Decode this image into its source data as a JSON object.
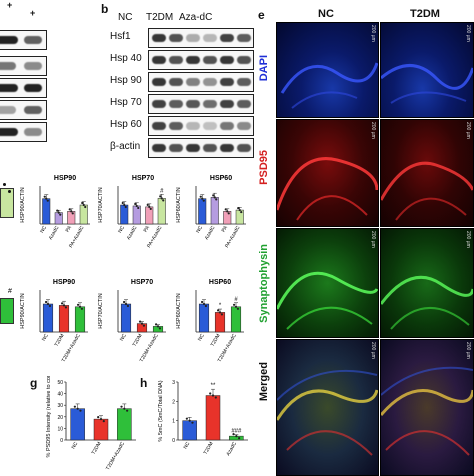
{
  "panel_b": {
    "letter": "b",
    "plus_signs": [
      "+",
      "+"
    ],
    "groups": [
      "NC",
      "T2DM",
      "Aza-dC"
    ],
    "rows": [
      "Hsf1",
      "Hsp 40",
      "Hsp 90",
      "Hsp 70",
      "Hsp 60",
      "β-actin"
    ]
  },
  "panel_e": {
    "letter": "e",
    "columns": [
      "NC",
      "T2DM"
    ],
    "rows": [
      "DAPI",
      "PSD95",
      "Synaptophysin",
      "Merged"
    ],
    "row_colors": [
      "#1f2fd6",
      "#d42020",
      "#20a030",
      "#111111"
    ],
    "scale_bar_label": "200 µm"
  },
  "panel_g": {
    "letter": "g"
  },
  "panel_h": {
    "letter": "h"
  },
  "colors": {
    "blue": "#2a5bd7",
    "red": "#e8332a",
    "green": "#2fbf3a",
    "purple": "#b59ce0",
    "pink": "#f1a0b8",
    "lightgreen": "#c8e6a0"
  },
  "chart_data": [
    {
      "type": "bar",
      "title": "HSP90",
      "ylabel": "HSP90/ACTIN",
      "categories": [
        "NC",
        "AzadC",
        "PA",
        "PA+AzadC"
      ],
      "values": [
        1.0,
        0.45,
        0.5,
        0.75
      ],
      "ylim": [
        0,
        1.5
      ],
      "markers": [
        "",
        "",
        "",
        ""
      ]
    },
    {
      "type": "bar",
      "title": "HSP70",
      "ylabel": "HSP70/ACTIN",
      "categories": [
        "NC",
        "AzadC",
        "PA",
        "PA+AzadC"
      ],
      "values": [
        1.0,
        0.95,
        0.9,
        1.35
      ],
      "ylim": [
        0,
        2.0
      ],
      "markers": [
        "",
        "",
        "",
        "#"
      ]
    },
    {
      "type": "bar",
      "title": "HSP60",
      "ylabel": "HSP60/ACTIN",
      "categories": [
        "NC",
        "AzadC",
        "PA",
        "PA+AzadC"
      ],
      "values": [
        1.0,
        1.05,
        0.5,
        0.55
      ],
      "ylim": [
        0,
        1.5
      ],
      "markers": [
        "",
        "",
        "",
        ""
      ]
    },
    {
      "type": "bar",
      "title": "HSP90",
      "ylabel": "HSP90/ACTIN",
      "categories": [
        "NC",
        "T2DM",
        "T2DM+AzadC"
      ],
      "values": [
        1.0,
        0.95,
        0.9
      ],
      "ylim": [
        0,
        1.5
      ],
      "markers": [
        "",
        "",
        ""
      ]
    },
    {
      "type": "bar",
      "title": "HSP70",
      "ylabel": "HSP70/ACTIN",
      "categories": [
        "NC",
        "T2DM",
        "T2DM+AzadC"
      ],
      "values": [
        1.0,
        0.3,
        0.2
      ],
      "ylim": [
        0,
        1.5
      ],
      "markers": [
        "",
        "",
        ""
      ]
    },
    {
      "type": "bar",
      "title": "HSP60",
      "ylabel": "HSP60/ACTIN",
      "categories": [
        "NC",
        "T2DM",
        "T2DM+AzadC"
      ],
      "values": [
        1.0,
        0.7,
        0.9
      ],
      "ylim": [
        0,
        1.5
      ],
      "markers": [
        "",
        "*",
        "#"
      ]
    },
    {
      "type": "bar",
      "title": "",
      "ylabel": "% PSD95 Intensity (relative to control)",
      "categories": [
        "NC",
        "T2DM",
        "T2DM+AzadC"
      ],
      "values": [
        27,
        18,
        27
      ],
      "ylim": [
        0,
        50
      ],
      "yticks": [
        0,
        10,
        20,
        30,
        40,
        50
      ],
      "markers": [
        "",
        "",
        ""
      ]
    },
    {
      "type": "bar",
      "title": "",
      "ylabel": "% 5mC (5mC/Total DNA)",
      "categories": [
        "NC",
        "T2DM",
        "AzadC"
      ],
      "values": [
        1.0,
        2.3,
        0.2
      ],
      "ylim": [
        0,
        3
      ],
      "yticks": [
        0,
        1,
        2,
        3
      ],
      "markers": [
        "",
        "**",
        "###"
      ]
    }
  ]
}
